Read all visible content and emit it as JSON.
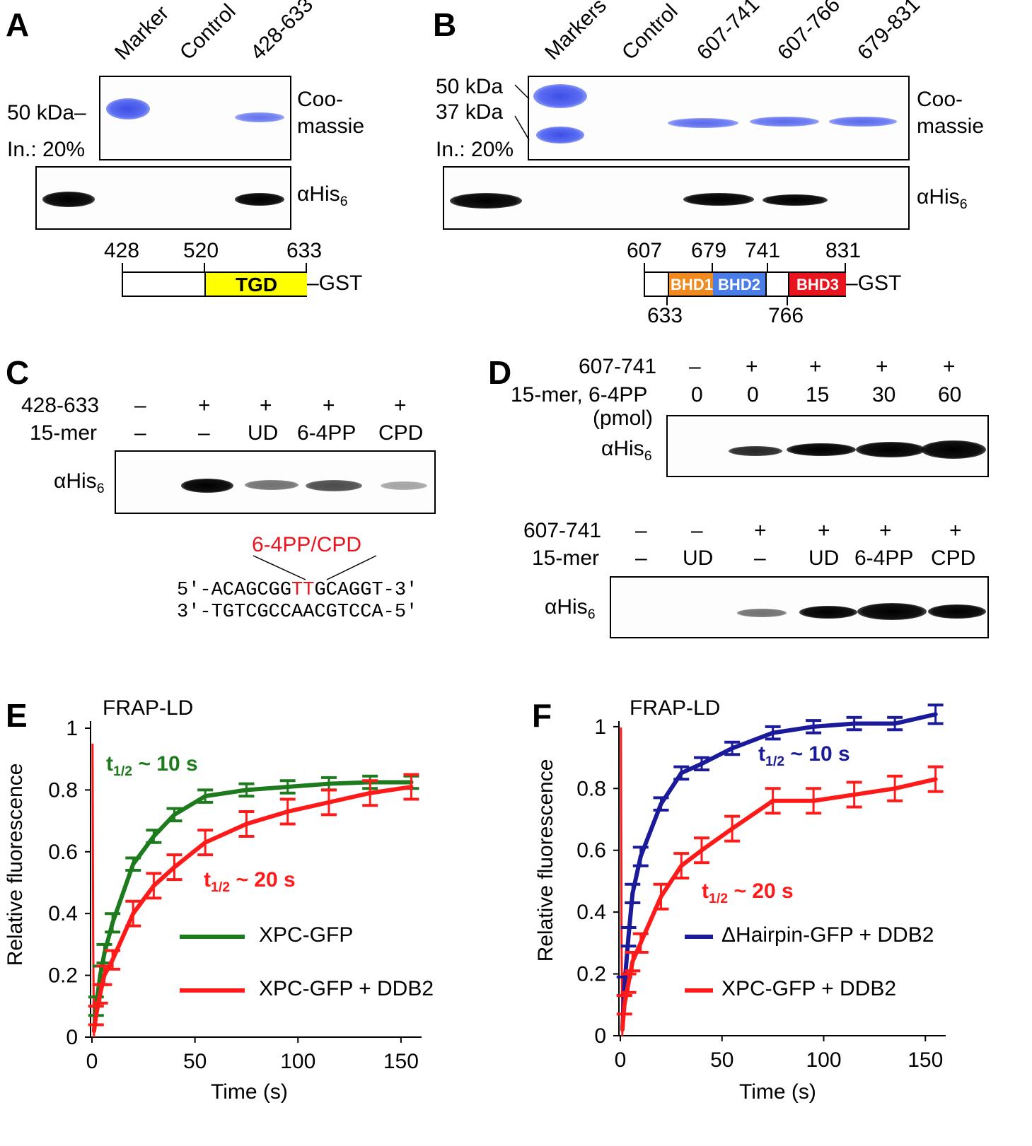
{
  "panelA": {
    "label": "A",
    "lanes": [
      "Marker",
      "Control",
      "428-633"
    ],
    "marker": "50 kDa–",
    "input": "In.: 20%",
    "coomassie_1": "Coo-",
    "coomassie_2": "massie",
    "ahis_a": "αHis",
    "ahis_sub": "6",
    "construct_positions": [
      "428",
      "520",
      "633"
    ],
    "domain": "TGD",
    "tag": "–GST"
  },
  "panelB": {
    "label": "B",
    "lanes": [
      "Markers",
      "Control",
      "607-741",
      "607-766",
      "679-831"
    ],
    "marker_50": "50 kDa",
    "marker_37": "37 kDa",
    "input": "In.: 20%",
    "coomassie_1": "Coo-",
    "coomassie_2": "massie",
    "ahis_a": "αHis",
    "ahis_sub": "6",
    "positions_top": [
      "607",
      "679",
      "741",
      "831"
    ],
    "positions_bottom": [
      "633",
      "766"
    ],
    "domains": [
      "BHD1",
      "BHD2",
      "BHD3"
    ],
    "tag": "–GST",
    "colors": {
      "bhd1": "#f08a1e",
      "bhd2": "#4a7ee6",
      "bhd3": "#e8141e",
      "tgd": "#ffff00"
    }
  },
  "panelC": {
    "label": "C",
    "row1_label": "428-633",
    "row1": [
      "–",
      "+",
      "+",
      "+",
      "+"
    ],
    "row2_label": "15-mer",
    "row2": [
      "–",
      "–",
      "UD",
      "6-4PP",
      "CPD"
    ],
    "ahis_a": "αHis",
    "ahis_sub": "6",
    "lesion_label": "6-4PP/CPD",
    "seq_top_pre": "5'-ACAGCGG",
    "seq_top_lesion": "TT",
    "seq_top_post": "GCAGGT-3'",
    "seq_bottom": "3'-TGTCGCCAACGTCCA-5'"
  },
  "panelD": {
    "label": "D",
    "top_row1_label": "607-741",
    "top_row1": [
      "–",
      "+",
      "+",
      "+",
      "+"
    ],
    "top_row2_label": "15-mer, 6-4PP",
    "top_row2": [
      "0",
      "0",
      "15",
      "30",
      "60"
    ],
    "top_unit": "(pmol)",
    "ahis_a": "αHis",
    "ahis_sub": "6",
    "bot_row1_label": "607-741",
    "bot_row1": [
      "–",
      "–",
      "+",
      "+",
      "+",
      "+"
    ],
    "bot_row2_label": "15-mer",
    "bot_row2": [
      "–",
      "UD",
      "–",
      "UD",
      "6-4PP",
      "CPD"
    ]
  },
  "panelE": {
    "label": "E",
    "inset_title": "FRAP-LD",
    "xlabel": "Time (s)",
    "ylabel": "Relative fluorescence",
    "t_fast_main": "t",
    "t_fast_sub": "1/2",
    "t_fast_rest": " ~ 10 s",
    "t_slow_main": "t",
    "t_slow_sub": "1/2",
    "t_slow_rest": " ~ 20 s",
    "legend": [
      "XPC-GFP",
      "XPC-GFP + DDB2"
    ]
  },
  "panelF": {
    "label": "F",
    "inset_title": "FRAP-LD",
    "xlabel": "Time (s)",
    "ylabel": "Relative fluorescence",
    "t_fast_main": "t",
    "t_fast_sub": "1/2",
    "t_fast_rest": " ~ 10 s",
    "t_slow_main": "t",
    "t_slow_sub": "1/2",
    "t_slow_rest": " ~ 20 s",
    "legend": [
      "ΔHairpin-GFP + DDB2",
      "XPC-GFP + DDB2"
    ]
  },
  "chart_data": [
    {
      "type": "line",
      "panel": "E",
      "xlim": [
        0,
        160
      ],
      "ylim": [
        0,
        1
      ],
      "xticks": [
        "0",
        "50",
        "100",
        "150"
      ],
      "yticks": [
        "0",
        "0.2",
        "0.4",
        "0.6",
        "0.8",
        "1"
      ],
      "series": [
        {
          "name": "XPC-GFP",
          "color": "#1d7a1d",
          "x": [
            2,
            4,
            6,
            10,
            20,
            30,
            40,
            55,
            75,
            95,
            115,
            135,
            155
          ],
          "y": [
            0.1,
            0.2,
            0.27,
            0.37,
            0.56,
            0.65,
            0.72,
            0.78,
            0.8,
            0.81,
            0.82,
            0.825,
            0.825
          ],
          "err": [
            0.03,
            0.03,
            0.03,
            0.03,
            0.02,
            0.02,
            0.02,
            0.02,
            0.02,
            0.02,
            0.02,
            0.02,
            0.02
          ]
        },
        {
          "name": "XPC-GFP + DDB2",
          "color": "#ff1a1a",
          "x": [
            2,
            4,
            6,
            10,
            20,
            30,
            40,
            55,
            75,
            95,
            115,
            135,
            155
          ],
          "y": [
            0.07,
            0.14,
            0.2,
            0.25,
            0.4,
            0.49,
            0.55,
            0.63,
            0.69,
            0.73,
            0.76,
            0.79,
            0.81
          ],
          "err": [
            0.03,
            0.03,
            0.03,
            0.03,
            0.04,
            0.04,
            0.04,
            0.04,
            0.04,
            0.04,
            0.04,
            0.04,
            0.04
          ]
        }
      ]
    },
    {
      "type": "line",
      "panel": "F",
      "xlim": [
        0,
        160
      ],
      "ylim": [
        0,
        1.05
      ],
      "xticks": [
        "0",
        "50",
        "100",
        "150"
      ],
      "yticks": [
        "0",
        "0.2",
        "0.4",
        "0.6",
        "0.8",
        "1"
      ],
      "series": [
        {
          "name": "ΔHairpin-GFP + DDB2",
          "color": "#1a1a9a",
          "x": [
            2,
            4,
            6,
            10,
            20,
            30,
            40,
            55,
            75,
            95,
            115,
            135,
            155
          ],
          "y": [
            0.16,
            0.32,
            0.46,
            0.58,
            0.75,
            0.85,
            0.88,
            0.93,
            0.98,
            1.0,
            1.01,
            1.01,
            1.04
          ],
          "err": [
            0.03,
            0.03,
            0.03,
            0.03,
            0.02,
            0.02,
            0.02,
            0.02,
            0.02,
            0.02,
            0.02,
            0.02,
            0.03
          ]
        },
        {
          "name": "XPC-GFP + DDB2",
          "color": "#ff1a1a",
          "x": [
            2,
            4,
            6,
            10,
            20,
            30,
            40,
            55,
            75,
            95,
            115,
            135,
            155
          ],
          "y": [
            0.1,
            0.17,
            0.24,
            0.3,
            0.45,
            0.55,
            0.6,
            0.67,
            0.76,
            0.76,
            0.78,
            0.8,
            0.83
          ],
          "err": [
            0.03,
            0.03,
            0.03,
            0.03,
            0.04,
            0.04,
            0.04,
            0.04,
            0.04,
            0.04,
            0.04,
            0.04,
            0.04
          ]
        }
      ]
    }
  ]
}
